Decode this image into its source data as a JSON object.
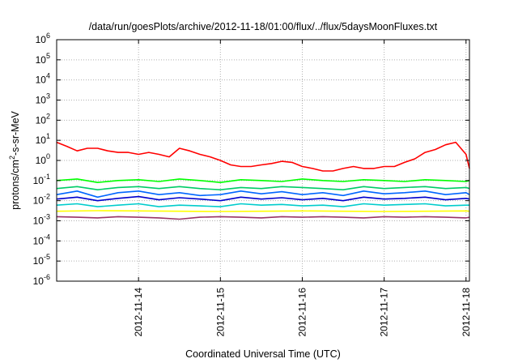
{
  "chart_data": {
    "type": "line",
    "title": "/data/run/goesPlots/archive/2012-11-18/01:00/flux/../flux/5daysMoonFluxes.txt",
    "xlabel": "Coordinated Universal Time (UTC)",
    "ylabel": {
      "base": "protons/cm",
      "sup": "2",
      "rest": "-s-sr-MeV"
    },
    "yscale": "log",
    "ylim": [
      1e-06,
      1000000.0
    ],
    "xlim": [
      "2012-11-13T00:00",
      "2012-11-18T01:00"
    ],
    "grid": true,
    "y_ticks": [
      {
        "value": 1e-06,
        "base": "10",
        "exp": "-6"
      },
      {
        "value": 1e-05,
        "base": "10",
        "exp": "-5"
      },
      {
        "value": 0.0001,
        "base": "10",
        "exp": "-4"
      },
      {
        "value": 0.001,
        "base": "10",
        "exp": "-3"
      },
      {
        "value": 0.01,
        "base": "10",
        "exp": "-2"
      },
      {
        "value": 0.1,
        "base": "10",
        "exp": "-1"
      },
      {
        "value": 1.0,
        "base": "10",
        "exp": "0"
      },
      {
        "value": 10.0,
        "base": "10",
        "exp": "1"
      },
      {
        "value": 100.0,
        "base": "10",
        "exp": "2"
      },
      {
        "value": 1000.0,
        "base": "10",
        "exp": "3"
      },
      {
        "value": 10000.0,
        "base": "10",
        "exp": "4"
      },
      {
        "value": 100000.0,
        "base": "10",
        "exp": "5"
      },
      {
        "value": 1000000.0,
        "base": "10",
        "exp": "6"
      }
    ],
    "x_ticks": [
      {
        "value": "2012-11-14T00:00",
        "label": "2012-11-14"
      },
      {
        "value": "2012-11-15T00:00",
        "label": "2012-11-15"
      },
      {
        "value": "2012-11-16T00:00",
        "label": "2012-11-16"
      },
      {
        "value": "2012-11-17T00:00",
        "label": "2012-11-17"
      },
      {
        "value": "2012-11-18T00:00",
        "label": "2012-11-18"
      }
    ],
    "series": [
      {
        "color": "#ff0000",
        "x": [
          "2012-11-13T00:00",
          "2012-11-13T03:00",
          "2012-11-13T06:00",
          "2012-11-13T09:00",
          "2012-11-13T12:00",
          "2012-11-13T15:00",
          "2012-11-13T18:00",
          "2012-11-13T21:00",
          "2012-11-14T00:00",
          "2012-11-14T03:00",
          "2012-11-14T06:00",
          "2012-11-14T09:00",
          "2012-11-14T12:00",
          "2012-11-14T15:00",
          "2012-11-14T18:00",
          "2012-11-14T21:00",
          "2012-11-15T00:00",
          "2012-11-15T03:00",
          "2012-11-15T06:00",
          "2012-11-15T09:00",
          "2012-11-15T12:00",
          "2012-11-15T15:00",
          "2012-11-15T18:00",
          "2012-11-15T21:00",
          "2012-11-16T00:00",
          "2012-11-16T03:00",
          "2012-11-16T06:00",
          "2012-11-16T09:00",
          "2012-11-16T12:00",
          "2012-11-16T15:00",
          "2012-11-16T18:00",
          "2012-11-16T21:00",
          "2012-11-17T00:00",
          "2012-11-17T03:00",
          "2012-11-17T06:00",
          "2012-11-17T09:00",
          "2012-11-17T12:00",
          "2012-11-17T15:00",
          "2012-11-17T18:00",
          "2012-11-17T21:00",
          "2012-11-18T00:00",
          "2012-11-18T01:00"
        ],
        "values": [
          8,
          5,
          3,
          4,
          4,
          3,
          2.5,
          2.5,
          2,
          2.5,
          2,
          1.5,
          4,
          3,
          2,
          1.5,
          1,
          0.6,
          0.5,
          0.5,
          0.6,
          0.7,
          0.9,
          0.8,
          0.5,
          0.4,
          0.3,
          0.3,
          0.4,
          0.5,
          0.4,
          0.4,
          0.5,
          0.5,
          0.8,
          1.2,
          2.5,
          3.5,
          6,
          8,
          2,
          0.4
        ]
      },
      {
        "color": "#00ff00",
        "x": [
          "2012-11-13T00:00",
          "2012-11-13T06:00",
          "2012-11-13T12:00",
          "2012-11-13T18:00",
          "2012-11-14T00:00",
          "2012-11-14T06:00",
          "2012-11-14T12:00",
          "2012-11-14T18:00",
          "2012-11-15T00:00",
          "2012-11-15T06:00",
          "2012-11-15T12:00",
          "2012-11-15T18:00",
          "2012-11-16T00:00",
          "2012-11-16T06:00",
          "2012-11-16T12:00",
          "2012-11-16T18:00",
          "2012-11-17T00:00",
          "2012-11-17T06:00",
          "2012-11-17T12:00",
          "2012-11-17T18:00",
          "2012-11-18T00:00",
          "2012-11-18T01:00"
        ],
        "values": [
          0.1,
          0.12,
          0.08,
          0.1,
          0.11,
          0.09,
          0.12,
          0.1,
          0.08,
          0.11,
          0.1,
          0.09,
          0.12,
          0.1,
          0.09,
          0.11,
          0.1,
          0.09,
          0.11,
          0.1,
          0.09,
          0.1
        ]
      },
      {
        "color": "#00cc66",
        "x": [
          "2012-11-13T00:00",
          "2012-11-13T06:00",
          "2012-11-13T12:00",
          "2012-11-13T18:00",
          "2012-11-14T00:00",
          "2012-11-14T06:00",
          "2012-11-14T12:00",
          "2012-11-14T18:00",
          "2012-11-15T00:00",
          "2012-11-15T06:00",
          "2012-11-15T12:00",
          "2012-11-15T18:00",
          "2012-11-16T00:00",
          "2012-11-16T06:00",
          "2012-11-16T12:00",
          "2012-11-16T18:00",
          "2012-11-17T00:00",
          "2012-11-17T06:00",
          "2012-11-17T12:00",
          "2012-11-17T18:00",
          "2012-11-18T00:00",
          "2012-11-18T01:00"
        ],
        "values": [
          0.04,
          0.05,
          0.035,
          0.045,
          0.05,
          0.04,
          0.05,
          0.04,
          0.035,
          0.045,
          0.04,
          0.05,
          0.045,
          0.04,
          0.035,
          0.05,
          0.04,
          0.045,
          0.05,
          0.04,
          0.045,
          0.04
        ]
      },
      {
        "color": "#0066ff",
        "x": [
          "2012-11-13T00:00",
          "2012-11-13T06:00",
          "2012-11-13T12:00",
          "2012-11-13T18:00",
          "2012-11-14T00:00",
          "2012-11-14T06:00",
          "2012-11-14T12:00",
          "2012-11-14T18:00",
          "2012-11-15T00:00",
          "2012-11-15T06:00",
          "2012-11-15T12:00",
          "2012-11-15T18:00",
          "2012-11-16T00:00",
          "2012-11-16T06:00",
          "2012-11-16T12:00",
          "2012-11-16T18:00",
          "2012-11-17T00:00",
          "2012-11-17T06:00",
          "2012-11-17T12:00",
          "2012-11-17T18:00",
          "2012-11-18T00:00",
          "2012-11-18T01:00"
        ],
        "values": [
          0.02,
          0.03,
          0.015,
          0.025,
          0.03,
          0.02,
          0.025,
          0.018,
          0.02,
          0.03,
          0.022,
          0.028,
          0.02,
          0.025,
          0.018,
          0.03,
          0.022,
          0.025,
          0.03,
          0.02,
          0.025,
          0.02
        ]
      },
      {
        "color": "#0000cc",
        "x": [
          "2012-11-13T00:00",
          "2012-11-13T06:00",
          "2012-11-13T12:00",
          "2012-11-13T18:00",
          "2012-11-14T00:00",
          "2012-11-14T06:00",
          "2012-11-14T12:00",
          "2012-11-14T18:00",
          "2012-11-15T00:00",
          "2012-11-15T06:00",
          "2012-11-15T12:00",
          "2012-11-15T18:00",
          "2012-11-16T00:00",
          "2012-11-16T06:00",
          "2012-11-16T12:00",
          "2012-11-16T18:00",
          "2012-11-17T00:00",
          "2012-11-17T06:00",
          "2012-11-17T12:00",
          "2012-11-17T18:00",
          "2012-11-18T00:00",
          "2012-11-18T01:00"
        ],
        "values": [
          0.012,
          0.015,
          0.01,
          0.013,
          0.016,
          0.011,
          0.014,
          0.012,
          0.01,
          0.015,
          0.012,
          0.014,
          0.011,
          0.013,
          0.01,
          0.015,
          0.012,
          0.013,
          0.015,
          0.011,
          0.013,
          0.012
        ]
      },
      {
        "color": "#00cccc",
        "x": [
          "2012-11-13T00:00",
          "2012-11-13T06:00",
          "2012-11-13T12:00",
          "2012-11-13T18:00",
          "2012-11-14T00:00",
          "2012-11-14T06:00",
          "2012-11-14T12:00",
          "2012-11-14T18:00",
          "2012-11-15T00:00",
          "2012-11-15T06:00",
          "2012-11-15T12:00",
          "2012-11-15T18:00",
          "2012-11-16T00:00",
          "2012-11-16T06:00",
          "2012-11-16T12:00",
          "2012-11-16T18:00",
          "2012-11-17T00:00",
          "2012-11-17T06:00",
          "2012-11-17T12:00",
          "2012-11-17T18:00",
          "2012-11-18T00:00",
          "2012-11-18T01:00"
        ],
        "values": [
          0.006,
          0.007,
          0.005,
          0.006,
          0.007,
          0.005,
          0.006,
          0.0055,
          0.005,
          0.007,
          0.006,
          0.0065,
          0.0055,
          0.006,
          0.005,
          0.007,
          0.006,
          0.0065,
          0.007,
          0.0055,
          0.006,
          0.006
        ]
      },
      {
        "color": "#ffff00",
        "x": [
          "2012-11-13T00:00",
          "2012-11-13T12:00",
          "2012-11-14T00:00",
          "2012-11-14T12:00",
          "2012-11-15T00:00",
          "2012-11-15T12:00",
          "2012-11-16T00:00",
          "2012-11-16T12:00",
          "2012-11-17T00:00",
          "2012-11-17T12:00",
          "2012-11-18T00:00",
          "2012-11-18T01:00"
        ],
        "values": [
          0.003,
          0.0032,
          0.0031,
          0.003,
          0.0029,
          0.003,
          0.0031,
          0.003,
          0.0029,
          0.003,
          0.0031,
          0.003
        ]
      },
      {
        "color": "#993366",
        "x": [
          "2012-11-13T00:00",
          "2012-11-13T06:00",
          "2012-11-13T12:00",
          "2012-11-13T18:00",
          "2012-11-14T00:00",
          "2012-11-14T06:00",
          "2012-11-14T12:00",
          "2012-11-14T18:00",
          "2012-11-15T00:00",
          "2012-11-15T06:00",
          "2012-11-15T12:00",
          "2012-11-15T18:00",
          "2012-11-16T00:00",
          "2012-11-16T06:00",
          "2012-11-16T12:00",
          "2012-11-16T18:00",
          "2012-11-17T00:00",
          "2012-11-17T06:00",
          "2012-11-17T12:00",
          "2012-11-17T18:00",
          "2012-11-18T00:00",
          "2012-11-18T01:00"
        ],
        "values": [
          0.0016,
          0.0015,
          0.0014,
          0.0016,
          0.0015,
          0.0014,
          0.0012,
          0.0015,
          0.0016,
          0.0015,
          0.0014,
          0.0016,
          0.0015,
          0.0016,
          0.0015,
          0.0014,
          0.0016,
          0.0015,
          0.0016,
          0.0015,
          0.0014,
          0.0015
        ]
      }
    ]
  }
}
